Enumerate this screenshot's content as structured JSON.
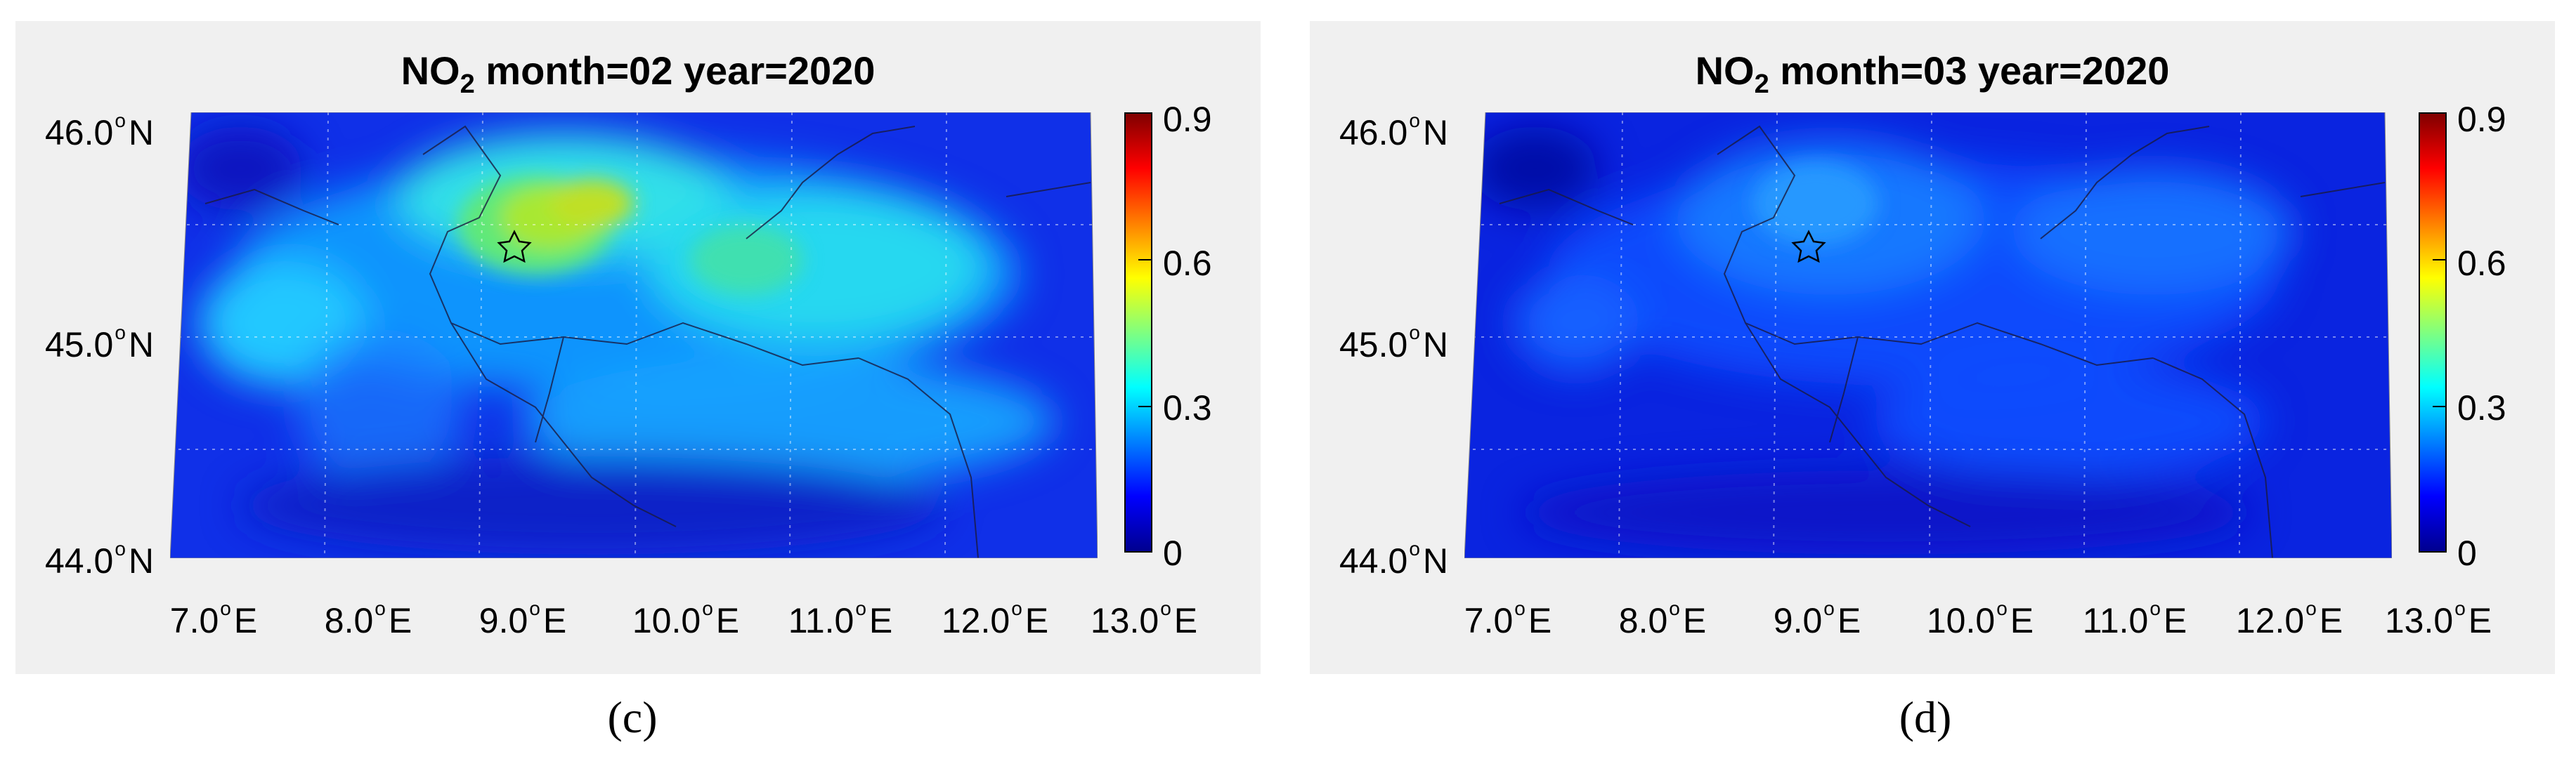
{
  "panels": [
    {
      "id": "c",
      "title_main": "NO",
      "title_sub": "2",
      "title_rest": " month=02 year=2020",
      "caption": "(c)",
      "lat_labels": [
        "46.0",
        "45.0",
        "44.0"
      ],
      "lat_hemisphere": "N",
      "lon_labels": [
        "7.0",
        "8.0",
        "9.0",
        "10.0",
        "11.0",
        "12.0",
        "13.0"
      ],
      "lon_hemisphere": "E",
      "colorbar_ticks": [
        "0.9",
        "0.6",
        "0.3",
        "0"
      ],
      "colorbar_range": [
        0,
        0.9
      ],
      "colormap": "jet",
      "marker": "star",
      "marker_lon": 9.19,
      "marker_lat": 45.46,
      "intensity": "high"
    },
    {
      "id": "d",
      "title_main": "NO",
      "title_sub": "2",
      "title_rest": " month=03 year=2020",
      "caption": "(d)",
      "lat_labels": [
        "46.0",
        "45.0",
        "44.0"
      ],
      "lat_hemisphere": "N",
      "lon_labels": [
        "7.0",
        "8.0",
        "9.0",
        "10.0",
        "11.0",
        "12.0",
        "13.0"
      ],
      "lon_hemisphere": "E",
      "colorbar_ticks": [
        "0.9",
        "0.6",
        "0.3",
        "0"
      ],
      "colorbar_range": [
        0,
        0.9
      ],
      "colormap": "jet",
      "marker": "star",
      "marker_lon": 9.19,
      "marker_lat": 45.46,
      "intensity": "low"
    }
  ]
}
